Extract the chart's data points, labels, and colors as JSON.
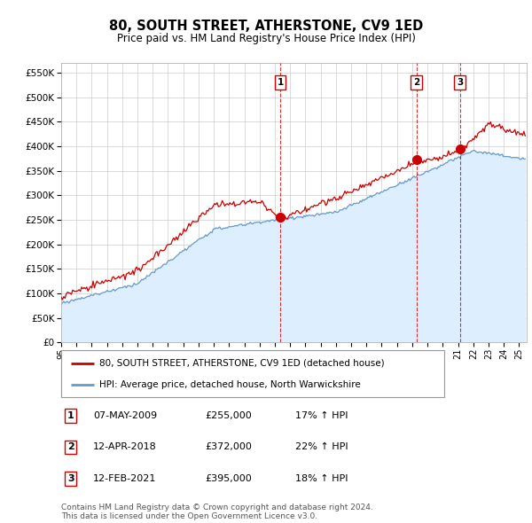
{
  "title": "80, SOUTH STREET, ATHERSTONE, CV9 1ED",
  "subtitle": "Price paid vs. HM Land Registry's House Price Index (HPI)",
  "ytick_values": [
    0,
    50000,
    100000,
    150000,
    200000,
    250000,
    300000,
    350000,
    400000,
    450000,
    500000,
    550000
  ],
  "xmin": 1995.0,
  "xmax": 2025.5,
  "ymin": 0,
  "ymax": 570000,
  "sale_dates": [
    2009.35,
    2018.28,
    2021.12
  ],
  "sale_prices": [
    255000,
    372000,
    395000
  ],
  "sale_labels": [
    "1",
    "2",
    "3"
  ],
  "hpi_color": "#6699cc",
  "hpi_fill_color": "#ddeeff",
  "price_color": "#cc0000",
  "vline_color": "#cc0000",
  "legend_label_price": "80, SOUTH STREET, ATHERSTONE, CV9 1ED (detached house)",
  "legend_label_hpi": "HPI: Average price, detached house, North Warwickshire",
  "table_rows": [
    [
      "1",
      "07-MAY-2009",
      "£255,000",
      "17% ↑ HPI"
    ],
    [
      "2",
      "12-APR-2018",
      "£372,000",
      "22% ↑ HPI"
    ],
    [
      "3",
      "12-FEB-2021",
      "£395,000",
      "18% ↑ HPI"
    ]
  ],
  "footnote": "Contains HM Land Registry data © Crown copyright and database right 2024.\nThis data is licensed under the Open Government Licence v3.0.",
  "background_color": "#ffffff",
  "grid_color": "#cccccc"
}
